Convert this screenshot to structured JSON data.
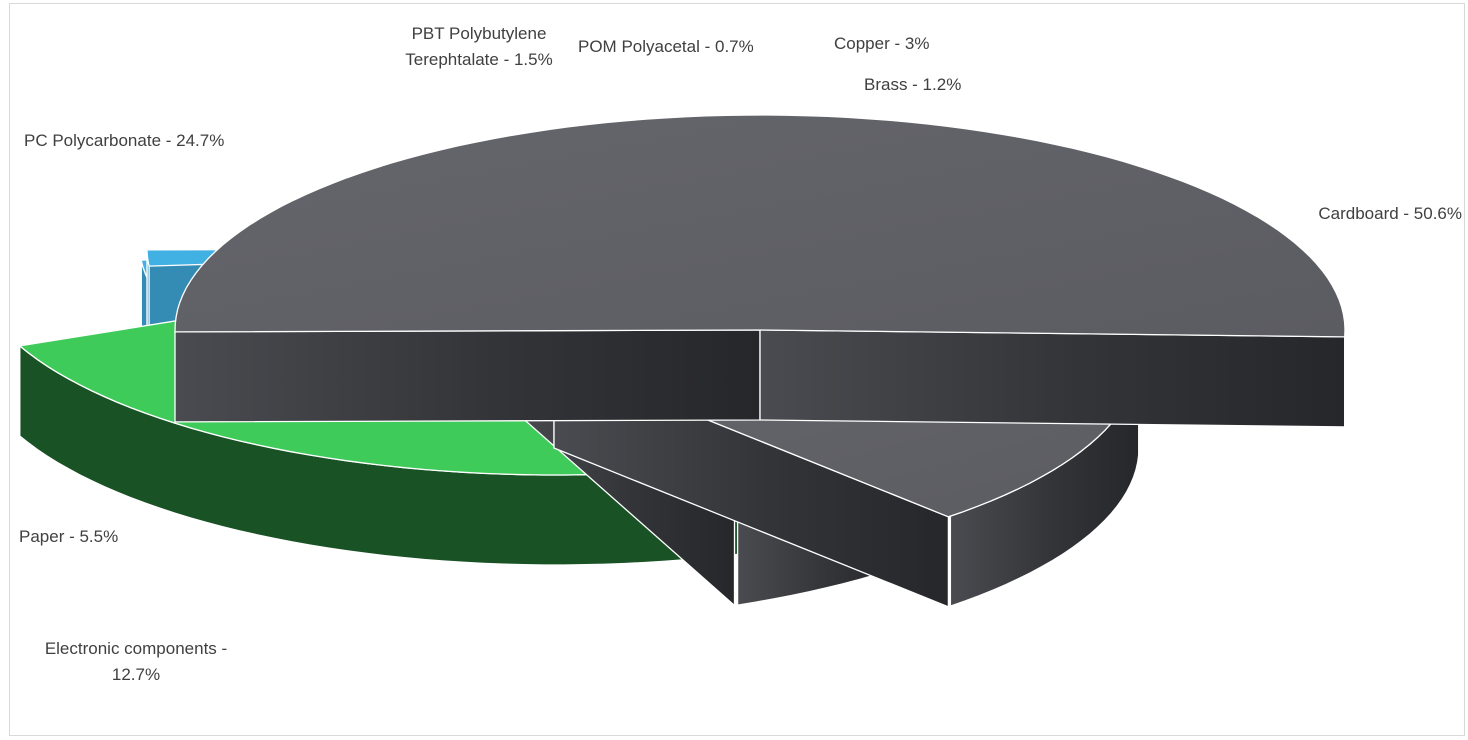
{
  "chart_data": {
    "type": "pie",
    "style": "3d-exploded",
    "legend": "none",
    "slices": [
      {
        "label": "Cardboard",
        "value": 50.6,
        "text": "Cardboard - 50.6%",
        "color": "#606167",
        "side_color": "#2c2c2f"
      },
      {
        "label": "Electronic components",
        "value": 12.7,
        "text": "Electronic components - 12.7%",
        "text_lines": [
          "Electronic components -",
          "12.7%"
        ],
        "color": "#606167",
        "side_color": "#2c2c2f"
      },
      {
        "label": "Paper",
        "value": 5.5,
        "text": "Paper - 5.5%",
        "color": "#606167",
        "side_color": "#2c2c2f"
      },
      {
        "label": "PC Polycarbonate",
        "value": 24.7,
        "text": "PC Polycarbonate - 24.7%",
        "color": "#3ecb5a",
        "side_color": "#195225"
      },
      {
        "label": "PBT Polybutylene Terephtalate",
        "value": 1.5,
        "text": "PBT Polybutylene Terephtalate - 1.5%",
        "text_lines": [
          "PBT Polybutylene",
          "Terephtalate - 1.5%"
        ],
        "color": "#3ecb5a",
        "side_color": "#195225"
      },
      {
        "label": "POM Polyacetal",
        "value": 0.7,
        "text": "POM Polyacetal - 0.7%",
        "color": "#3ecb5a",
        "side_color": "#195225"
      },
      {
        "label": "Copper",
        "value": 3,
        "text": "Copper - 3%",
        "color": "#41b0e2",
        "side_color": "#348cb4"
      },
      {
        "label": "Brass",
        "value": 1.2,
        "text": "Brass - 1.2%",
        "color": "#41b0e2",
        "side_color": "#348cb4"
      }
    ]
  }
}
